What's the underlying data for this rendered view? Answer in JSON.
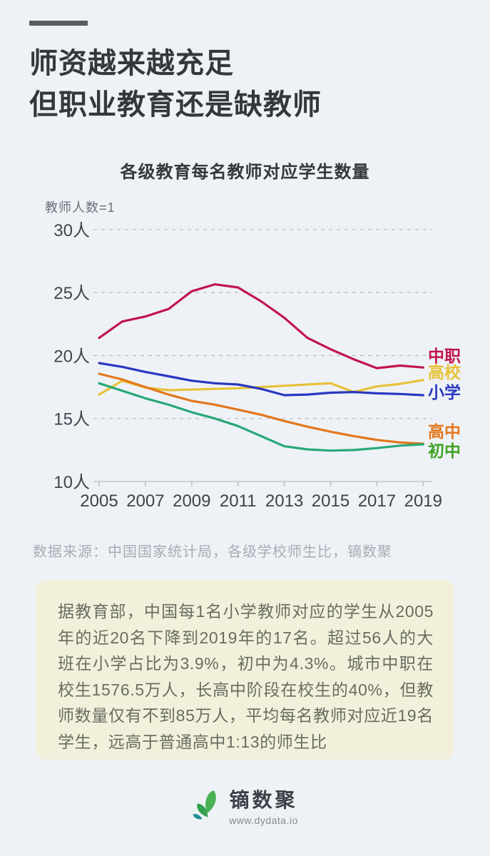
{
  "page": {
    "bg_color": "#eef2f7",
    "note_bg_color": "#f2f0db"
  },
  "header": {
    "title_line1": "师资越来越充足",
    "title_line2": "但职业教育还是缺教师"
  },
  "chart_data": {
    "type": "line",
    "title": "各级教育每名教师对应学生数量",
    "ylabel": "教师人数=1",
    "xlabel": "",
    "unit": "人",
    "ylim": [
      10,
      30
    ],
    "grid": true,
    "legend_position": "right",
    "x": [
      2005,
      2006,
      2007,
      2008,
      2009,
      2010,
      2011,
      2012,
      2013,
      2014,
      2015,
      2016,
      2017,
      2018,
      2019
    ],
    "x_tick_labels": [
      "2005",
      "2007",
      "2009",
      "2011",
      "2013",
      "2015",
      "2017",
      "2019"
    ],
    "y_ticks": [
      {
        "value": 30,
        "label": "30人"
      },
      {
        "value": 25,
        "label": "25人"
      },
      {
        "value": 20,
        "label": "20人"
      },
      {
        "value": 15,
        "label": "15人"
      },
      {
        "value": 10,
        "label": "10人"
      }
    ],
    "series": [
      {
        "name": "中职",
        "color": "#c2154d",
        "label_dy": -16,
        "values": [
          21.4,
          22.7,
          23.1,
          23.7,
          25.1,
          25.65,
          25.4,
          24.3,
          23.0,
          21.4,
          20.5,
          19.7,
          19.0,
          19.2,
          19.05
        ]
      },
      {
        "name": "高校",
        "color": "#e7c238",
        "label_dy": -11,
        "values": [
          16.9,
          18.0,
          17.45,
          17.25,
          17.3,
          17.35,
          17.4,
          17.5,
          17.6,
          17.7,
          17.8,
          17.1,
          17.55,
          17.75,
          18.05
        ]
      },
      {
        "name": "小学",
        "color": "#2a38c0",
        "label_dy": -4,
        "values": [
          19.4,
          19.1,
          18.7,
          18.35,
          18.0,
          17.8,
          17.7,
          17.35,
          16.85,
          16.9,
          17.05,
          17.1,
          17.0,
          16.95,
          16.85
        ]
      },
      {
        "name": "高中",
        "color": "#e2771c",
        "label_dy": -17,
        "values": [
          18.55,
          18.1,
          17.5,
          16.9,
          16.4,
          16.1,
          15.7,
          15.3,
          14.8,
          14.35,
          13.95,
          13.6,
          13.3,
          13.1,
          13.0
        ]
      },
      {
        "name": "初中",
        "color": "#2aa878",
        "legend_color": "#3da223",
        "label_dy": 9,
        "values": [
          17.8,
          17.2,
          16.6,
          16.1,
          15.5,
          15.0,
          14.4,
          13.6,
          12.8,
          12.55,
          12.45,
          12.5,
          12.65,
          12.85,
          12.95
        ]
      }
    ]
  },
  "source": "数据来源：中国国家统计局，各级学校师生比，镝数聚",
  "note": {
    "text": "据教育部，中国每1名小学教师对应的学生从2005年的近20名下降到2019年的17名。超过56人的大班在小学占比为3.9%，初中为4.3%。城市中职在校生1576.5万人，长高中阶段在校生的40%，但教师数量仅有不到85万人，平均每名教师对应近19名学生，远高于普通高中1:13的师生比"
  },
  "footer": {
    "logo_icon": "leaf-icon",
    "logo_text": "镝数聚",
    "logo_url": "www.dydata.io"
  }
}
